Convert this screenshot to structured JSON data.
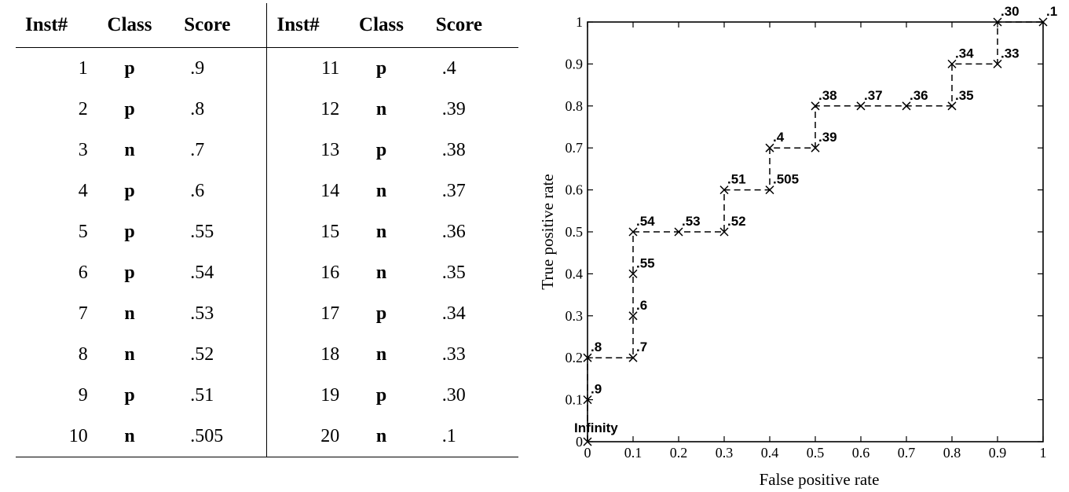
{
  "table": {
    "headers": [
      "Inst#",
      "Class",
      "Score",
      "Inst#",
      "Class",
      "Score"
    ],
    "rows": [
      {
        "inst": "1",
        "class": "p",
        "score": ".9"
      },
      {
        "inst": "2",
        "class": "p",
        "score": ".8"
      },
      {
        "inst": "3",
        "class": "n",
        "score": ".7"
      },
      {
        "inst": "4",
        "class": "p",
        "score": ".6"
      },
      {
        "inst": "5",
        "class": "p",
        "score": ".55"
      },
      {
        "inst": "6",
        "class": "p",
        "score": ".54"
      },
      {
        "inst": "7",
        "class": "n",
        "score": ".53"
      },
      {
        "inst": "8",
        "class": "n",
        "score": ".52"
      },
      {
        "inst": "9",
        "class": "p",
        "score": ".51"
      },
      {
        "inst": "10",
        "class": "n",
        "score": ".505"
      },
      {
        "inst": "11",
        "class": "p",
        "score": ".4"
      },
      {
        "inst": "12",
        "class": "n",
        "score": ".39"
      },
      {
        "inst": "13",
        "class": "p",
        "score": ".38"
      },
      {
        "inst": "14",
        "class": "n",
        "score": ".37"
      },
      {
        "inst": "15",
        "class": "n",
        "score": ".36"
      },
      {
        "inst": "16",
        "class": "n",
        "score": ".35"
      },
      {
        "inst": "17",
        "class": "p",
        "score": ".34"
      },
      {
        "inst": "18",
        "class": "n",
        "score": ".33"
      },
      {
        "inst": "19",
        "class": "p",
        "score": ".30"
      },
      {
        "inst": "20",
        "class": "n",
        "score": ".1"
      }
    ]
  },
  "chart_data": {
    "type": "line",
    "xlabel": "False positive rate",
    "ylabel": "True positive rate",
    "xlim": [
      0,
      1
    ],
    "ylim": [
      0,
      1
    ],
    "x_ticks": [
      "0",
      "0.1",
      "0.2",
      "0.3",
      "0.4",
      "0.5",
      "0.6",
      "0.7",
      "0.8",
      "0.9",
      "1"
    ],
    "y_ticks": [
      "0",
      "0.1",
      "0.2",
      "0.3",
      "0.4",
      "0.5",
      "0.6",
      "0.7",
      "0.8",
      "0.9",
      "1"
    ],
    "grid": false,
    "line_style": "dashed",
    "marker": "x",
    "points": [
      {
        "x": 0,
        "y": 0,
        "label": "Infinity"
      },
      {
        "x": 0,
        "y": 0.1,
        "label": ".9"
      },
      {
        "x": 0,
        "y": 0.2,
        "label": ".8"
      },
      {
        "x": 0.1,
        "y": 0.2,
        "label": ".7"
      },
      {
        "x": 0.1,
        "y": 0.3,
        "label": ".6"
      },
      {
        "x": 0.1,
        "y": 0.4,
        "label": ".55"
      },
      {
        "x": 0.1,
        "y": 0.5,
        "label": ".54"
      },
      {
        "x": 0.2,
        "y": 0.5,
        "label": ".53"
      },
      {
        "x": 0.3,
        "y": 0.5,
        "label": ".52"
      },
      {
        "x": 0.3,
        "y": 0.6,
        "label": ".51"
      },
      {
        "x": 0.4,
        "y": 0.6,
        "label": ".505"
      },
      {
        "x": 0.4,
        "y": 0.7,
        "label": ".4"
      },
      {
        "x": 0.5,
        "y": 0.7,
        "label": ".39"
      },
      {
        "x": 0.5,
        "y": 0.8,
        "label": ".38"
      },
      {
        "x": 0.6,
        "y": 0.8,
        "label": ".37"
      },
      {
        "x": 0.7,
        "y": 0.8,
        "label": ".36"
      },
      {
        "x": 0.8,
        "y": 0.8,
        "label": ".35"
      },
      {
        "x": 0.8,
        "y": 0.9,
        "label": ".34"
      },
      {
        "x": 0.9,
        "y": 0.9,
        "label": ".33"
      },
      {
        "x": 0.9,
        "y": 1.0,
        "label": ".30"
      },
      {
        "x": 1.0,
        "y": 1.0,
        "label": ".1"
      }
    ]
  }
}
